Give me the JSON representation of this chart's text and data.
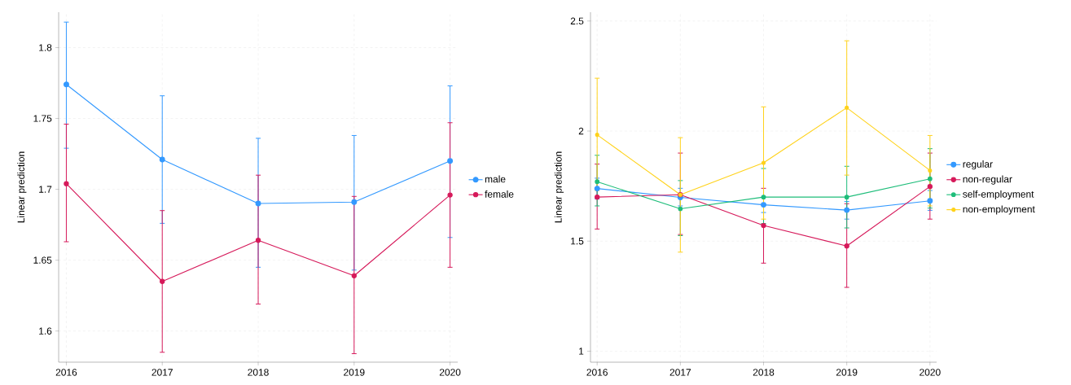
{
  "chart_data": [
    {
      "type": "line",
      "ylabel": "Linear prediction",
      "categories": [
        "2016",
        "2017",
        "2018",
        "2019",
        "2020"
      ],
      "ylim": [
        1.578,
        1.825
      ],
      "yticks": [
        1.6,
        1.65,
        1.7,
        1.75,
        1.8
      ],
      "grid": true,
      "legend": "right",
      "marker": "circle",
      "series": [
        {
          "name": "male",
          "color": "#3399ff",
          "values": [
            1.774,
            1.721,
            1.69,
            1.691,
            1.72
          ],
          "errors": [
            [
              1.729,
              1.818
            ],
            [
              1.676,
              1.766
            ],
            [
              1.645,
              1.736
            ],
            [
              1.643,
              1.738
            ],
            [
              1.666,
              1.773
            ]
          ]
        },
        {
          "name": "female",
          "color": "#d6195a",
          "values": [
            1.704,
            1.635,
            1.664,
            1.639,
            1.696
          ],
          "errors": [
            [
              1.663,
              1.746
            ],
            [
              1.585,
              1.685
            ],
            [
              1.619,
              1.71
            ],
            [
              1.584,
              1.695
            ],
            [
              1.645,
              1.747
            ]
          ]
        }
      ]
    },
    {
      "type": "line",
      "ylabel": "Linear prediction",
      "categories": [
        "2016",
        "2017",
        "2018",
        "2019",
        "2020"
      ],
      "ylim": [
        0.95,
        2.54
      ],
      "yticks": [
        1,
        1.5,
        2,
        2.5
      ],
      "grid": true,
      "legend": "right",
      "marker": "circle",
      "series": [
        {
          "name": "regular",
          "color": "#3399ff",
          "values": [
            1.739,
            1.699,
            1.665,
            1.641,
            1.683
          ],
          "errors": [
            [
              1.692,
              1.786
            ],
            [
              1.66,
              1.74
            ],
            [
              1.63,
              1.7
            ],
            [
              1.6,
              1.68
            ],
            [
              1.64,
              1.73
            ]
          ]
        },
        {
          "name": "non-regular",
          "color": "#d6195a",
          "values": [
            1.7,
            1.711,
            1.571,
            1.478,
            1.748
          ],
          "errors": [
            [
              1.555,
              1.85
            ],
            [
              1.53,
              1.9
            ],
            [
              1.4,
              1.74
            ],
            [
              1.29,
              1.67
            ],
            [
              1.6,
              1.9
            ]
          ]
        },
        {
          "name": "self-employment",
          "color": "#1ebd7a",
          "values": [
            1.77,
            1.647,
            1.7,
            1.7,
            1.783
          ],
          "errors": [
            [
              1.66,
              1.89
            ],
            [
              1.525,
              1.775
            ],
            [
              1.58,
              1.83
            ],
            [
              1.56,
              1.84
            ],
            [
              1.65,
              1.92
            ]
          ]
        },
        {
          "name": "non-employment",
          "color": "#ffd21a",
          "values": [
            1.983,
            1.711,
            1.856,
            2.106,
            1.821
          ],
          "errors": [
            [
              1.73,
              2.24
            ],
            [
              1.45,
              1.97
            ],
            [
              1.6,
              2.11
            ],
            [
              1.8,
              2.41
            ],
            [
              1.66,
              1.98
            ]
          ]
        }
      ]
    }
  ]
}
